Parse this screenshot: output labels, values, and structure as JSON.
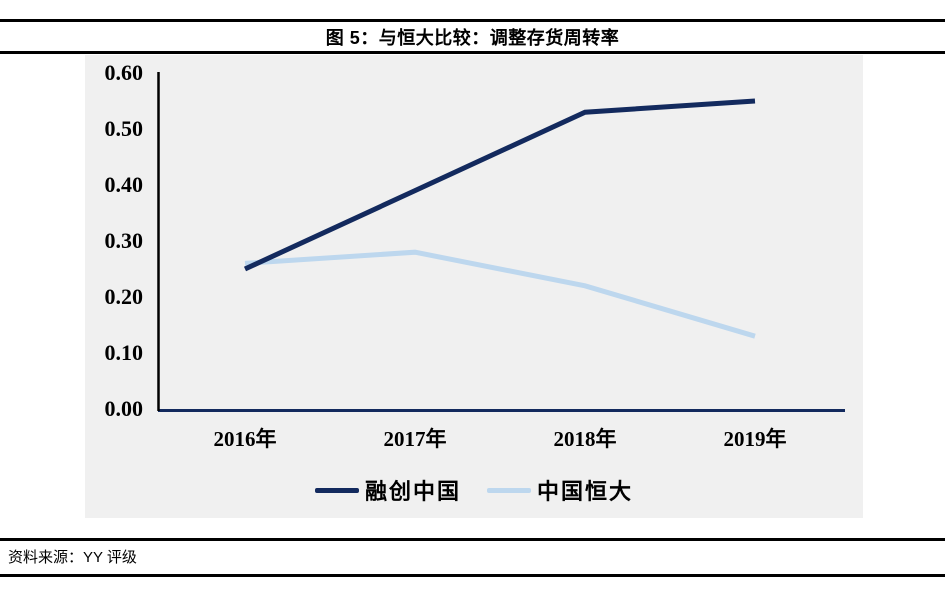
{
  "header": {
    "title": "图 5：与恒大比较：调整存货周转率"
  },
  "footer": {
    "source_label": "资料来源：YY 评级"
  },
  "chart_data": {
    "type": "line",
    "title": "图 5：与恒大比较：调整存货周转率",
    "categories": [
      "2016年",
      "2017年",
      "2018年",
      "2019年"
    ],
    "series": [
      {
        "name": "融创中国",
        "color": "#132a5e",
        "values": [
          0.25,
          0.39,
          0.53,
          0.55
        ]
      },
      {
        "name": "中国恒大",
        "color": "#bdd7ee",
        "values": [
          0.26,
          0.28,
          0.22,
          0.13
        ]
      }
    ],
    "xlabel": "",
    "ylabel": "",
    "ylim": [
      0,
      0.6
    ],
    "ytick_labels": [
      "0.00",
      "0.10",
      "0.20",
      "0.30",
      "0.40",
      "0.50",
      "0.60"
    ],
    "grid": false,
    "legend_position": "bottom",
    "plot_bg_color": "#f0f0f0",
    "y_axis_color": "#000000",
    "x_axis_color": "#132a5e"
  }
}
